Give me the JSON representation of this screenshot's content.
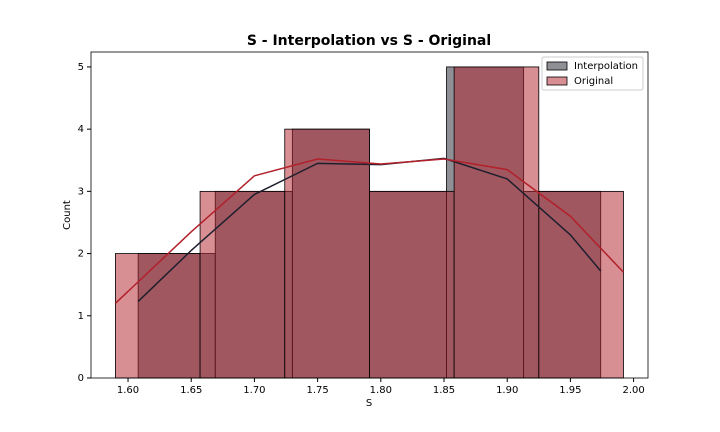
{
  "chart_data": {
    "type": "histogram",
    "title": "S - Interpolation vs S - Original",
    "xlabel": "S",
    "ylabel": "Count",
    "xlim": [
      1.5707,
      2.0114
    ],
    "ylim": [
      0,
      5.24
    ],
    "xticks": [
      {
        "value": 1.6,
        "label": "1.60"
      },
      {
        "value": 1.65,
        "label": "1.65"
      },
      {
        "value": 1.7,
        "label": "1.70"
      },
      {
        "value": 1.75,
        "label": "1.75"
      },
      {
        "value": 1.8,
        "label": "1.80"
      },
      {
        "value": 1.85,
        "label": "1.85"
      },
      {
        "value": 1.9,
        "label": "1.90"
      },
      {
        "value": 1.95,
        "label": "1.95"
      },
      {
        "value": 2.0,
        "label": "2.00"
      }
    ],
    "yticks": [
      0,
      1,
      2,
      3,
      4,
      5
    ],
    "legend": "upper right",
    "series": [
      {
        "name": "Interpolation",
        "color": "#1f1f2e",
        "bins": [
          1.608,
          1.669,
          1.73,
          1.791,
          1.852,
          1.913,
          1.974
        ],
        "values": [
          2,
          3,
          4,
          3,
          5,
          3
        ],
        "kde": {
          "x": [
            1.608,
            1.65,
            1.7,
            1.75,
            1.8,
            1.85,
            1.9,
            1.95,
            1.974
          ],
          "values": [
            1.23,
            2.05,
            2.95,
            3.45,
            3.43,
            3.53,
            3.2,
            2.3,
            1.72
          ]
        }
      },
      {
        "name": "Original",
        "color": "#b2202a",
        "bins": [
          1.59,
          1.657,
          1.724,
          1.791,
          1.858,
          1.925,
          1.992
        ],
        "values": [
          2,
          3,
          4,
          3,
          5,
          3
        ],
        "kde": {
          "x": [
            1.59,
            1.65,
            1.7,
            1.75,
            1.8,
            1.85,
            1.9,
            1.95,
            1.992
          ],
          "values": [
            1.2,
            2.35,
            3.25,
            3.52,
            3.44,
            3.52,
            3.35,
            2.6,
            1.7
          ]
        }
      }
    ]
  }
}
